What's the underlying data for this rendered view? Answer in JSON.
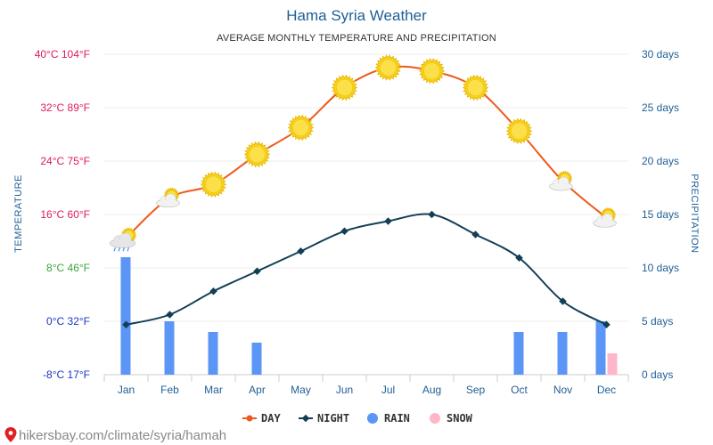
{
  "chart_data": {
    "type": "line",
    "title": "Hama Syria Weather",
    "subtitle": "AVERAGE MONTHLY TEMPERATURE AND PRECIPITATION",
    "ylabel_left": "TEMPERATURE",
    "ylabel_right": "PRECIPITATION",
    "categories": [
      "Jan",
      "Feb",
      "Mar",
      "Apr",
      "May",
      "Jun",
      "Jul",
      "Aug",
      "Sep",
      "Oct",
      "Nov",
      "Dec"
    ],
    "ylim_left": [
      -8,
      40
    ],
    "ylim_right": [
      0,
      30
    ],
    "left_ticks": [
      {
        "value": 40,
        "label": "40°C 104°F",
        "color": "#e0185e"
      },
      {
        "value": 32,
        "label": "32°C 89°F",
        "color": "#e0185e"
      },
      {
        "value": 24,
        "label": "24°C 75°F",
        "color": "#e0185e"
      },
      {
        "value": 16,
        "label": "16°C 60°F",
        "color": "#e0185e"
      },
      {
        "value": 8,
        "label": "8°C 46°F",
        "color": "#3aa63a"
      },
      {
        "value": 0,
        "label": "0°C 32°F",
        "color": "#1a36c2"
      },
      {
        "value": -8,
        "label": "-8°C 17°F",
        "color": "#1a36c2"
      }
    ],
    "right_ticks": [
      {
        "value": 30,
        "label": "30 days"
      },
      {
        "value": 25,
        "label": "25 days"
      },
      {
        "value": 20,
        "label": "20 days"
      },
      {
        "value": 15,
        "label": "15 days"
      },
      {
        "value": 10,
        "label": "10 days"
      },
      {
        "value": 5,
        "label": "5 days"
      },
      {
        "value": 0,
        "label": "0 days"
      }
    ],
    "series": [
      {
        "name": "DAY",
        "axis": "left",
        "color": "#ee5a1c",
        "values": [
          12.5,
          18.5,
          20.5,
          25,
          29,
          35,
          38,
          37.5,
          35,
          28.5,
          21,
          15.5
        ],
        "icons": [
          "cloud-rain-sun",
          "cloud-sun",
          "sun",
          "sun",
          "sun",
          "sun",
          "sun",
          "sun",
          "sun",
          "sun",
          "cloud-sun",
          "cloud-sun"
        ]
      },
      {
        "name": "NIGHT",
        "axis": "left",
        "color": "#123f55",
        "values": [
          -0.5,
          1,
          4.5,
          7.5,
          10.5,
          13.5,
          15,
          16,
          13,
          9.5,
          3,
          -0.5
        ]
      },
      {
        "name": "RAIN",
        "axis": "right",
        "color": "#5b95f5",
        "values": [
          11,
          5,
          4,
          3,
          0,
          0,
          0,
          0,
          0,
          4,
          4,
          5
        ]
      },
      {
        "name": "SNOW",
        "axis": "right",
        "color": "#ffb6c8",
        "values": [
          0,
          0,
          0,
          0,
          0,
          0,
          0,
          0,
          0,
          0,
          0,
          2
        ]
      }
    ],
    "grid": true,
    "legend_position": "bottom-center"
  },
  "footer": {
    "text": "hikersbay.com/climate/syria/hamah",
    "pin_color": "#e02020"
  }
}
